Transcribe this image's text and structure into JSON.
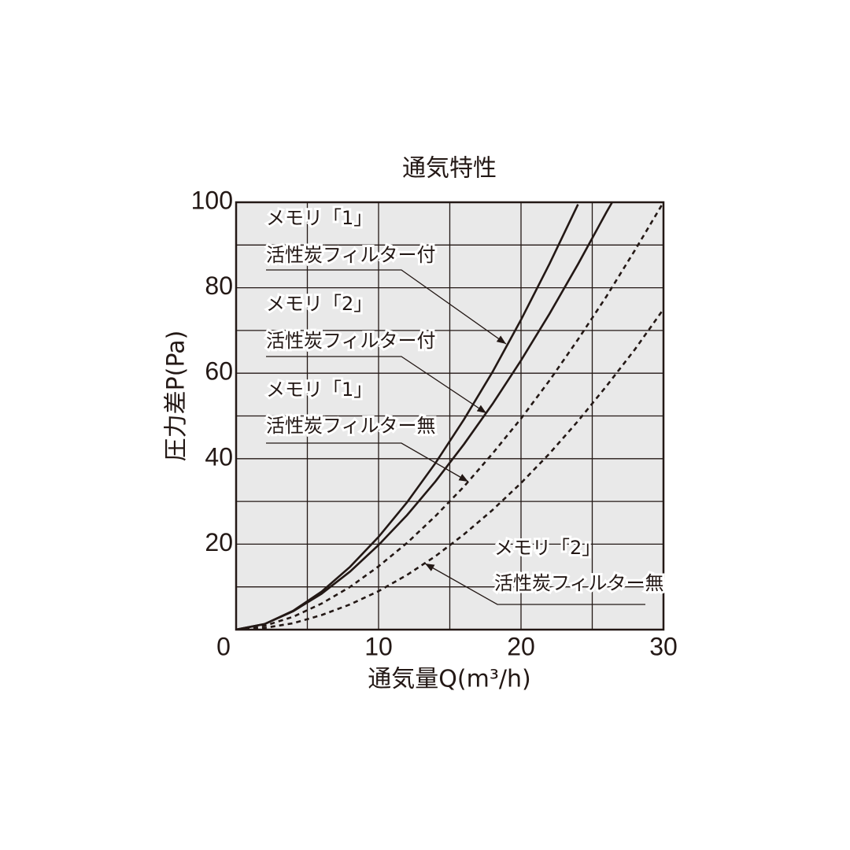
{
  "chart_data": {
    "type": "line",
    "title": "通気特性",
    "x_label": "通気量Q(m³/h)",
    "y_label": "圧力差P(Pa)",
    "xlim": [
      0,
      30
    ],
    "ylim": [
      0,
      100
    ],
    "xticks": [
      0,
      10,
      20,
      30
    ],
    "yticks": [
      0,
      20,
      40,
      60,
      80,
      100
    ],
    "grid": true,
    "xgrid": [
      5,
      10,
      15,
      20,
      25
    ],
    "ygrid": [
      10,
      20,
      30,
      40,
      50,
      60,
      70,
      80,
      90
    ],
    "series": [
      {
        "label": [
          "メモリ「1」",
          "活性炭フィルター付"
        ],
        "color": "#231815",
        "dash": false,
        "x": [
          0,
          2,
          4,
          6,
          8,
          10,
          12,
          14,
          16,
          18,
          20,
          22,
          24
        ],
        "values": [
          0,
          1.3,
          4.4,
          8.9,
          14.7,
          21.7,
          29.8,
          39.0,
          49.2,
          60.3,
          72.5,
          85.6,
          99.5
        ]
      },
      {
        "label": [
          "メモリ「2」",
          "活性炭フィルター付"
        ],
        "color": "#231815",
        "dash": false,
        "x": [
          0,
          2,
          4,
          6,
          8,
          10,
          12,
          14,
          16,
          18,
          20,
          22,
          24,
          26,
          26.4
        ],
        "values": [
          0,
          1.3,
          4.3,
          8.4,
          13.6,
          19.8,
          26.8,
          34.7,
          43.4,
          52.8,
          63.0,
          73.9,
          85.5,
          97.7,
          100
        ]
      },
      {
        "label": [
          "メモリ「1」",
          "活性炭フィルター無"
        ],
        "color": "#231815",
        "dash": true,
        "x": [
          0,
          2,
          4,
          6,
          8,
          10,
          12,
          14,
          16,
          18,
          20,
          22,
          24,
          26,
          28,
          30
        ],
        "values": [
          0,
          0.9,
          3.0,
          6.1,
          10.0,
          14.8,
          20.3,
          26.6,
          33.5,
          41.2,
          49.4,
          58.3,
          67.9,
          78.0,
          88.8,
          100
        ]
      },
      {
        "label": [
          "メモリ「2」",
          "活性炭フィルター無"
        ],
        "color": "#231815",
        "dash": true,
        "x": [
          0,
          2,
          4,
          6,
          8,
          10,
          12,
          14,
          16,
          18,
          20,
          22,
          24,
          26,
          28,
          30
        ],
        "values": [
          0,
          0.4,
          1.5,
          3.4,
          5.9,
          9.0,
          12.8,
          17.2,
          22.3,
          28.0,
          34.3,
          41.2,
          48.8,
          57.0,
          65.6,
          75
        ]
      }
    ]
  }
}
